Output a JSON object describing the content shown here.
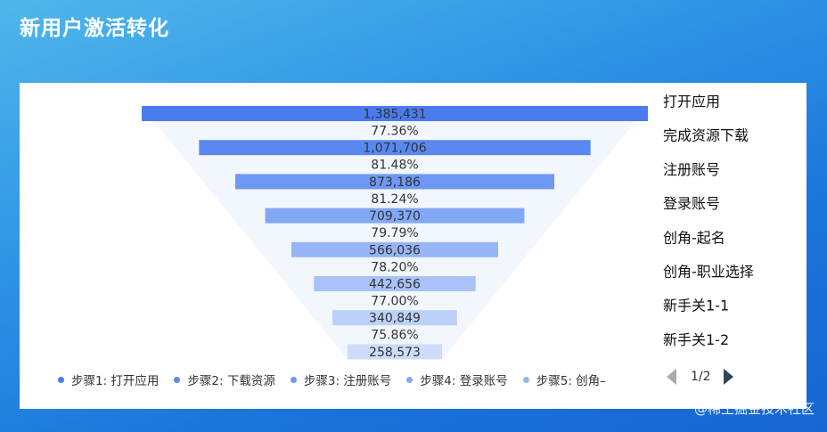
{
  "title": "新用户激活转化",
  "colors": {
    "bars": [
      "#4a7cf0",
      "#5a88f1",
      "#6e98f3",
      "#82a7f5",
      "#96b5f6",
      "#a9c3f8",
      "#bcd1f9",
      "#cddcfa"
    ],
    "funnel_bg": "#f2f6fd"
  },
  "chart_data": {
    "type": "bar",
    "categories": [
      "打开应用",
      "完成资源下载",
      "注册账号",
      "登录账号",
      "创角-起名",
      "创角-职业选择",
      "新手关1-1",
      "新手关1-2"
    ],
    "values": [
      1385431,
      1071706,
      873186,
      709370,
      566036,
      442656,
      340849,
      258573
    ],
    "value_labels": [
      "1,385,431",
      "1,071,706",
      "873,186",
      "709,370",
      "566,036",
      "442,656",
      "340,849",
      "258,573"
    ],
    "conversion_labels": [
      "77.36%",
      "81.48%",
      "81.24%",
      "79.79%",
      "78.20%",
      "77.00%",
      "75.86%"
    ],
    "legend": [
      {
        "label": "步骤1: 打开应用"
      },
      {
        "label": "步骤2: 下载资源"
      },
      {
        "label": "步骤3: 注册账号"
      },
      {
        "label": "步骤4: 登录账号"
      },
      {
        "label": "步骤5: 创角–"
      }
    ],
    "legend_page": "1/2"
  },
  "watermark": "@稀土掘金技术社区"
}
